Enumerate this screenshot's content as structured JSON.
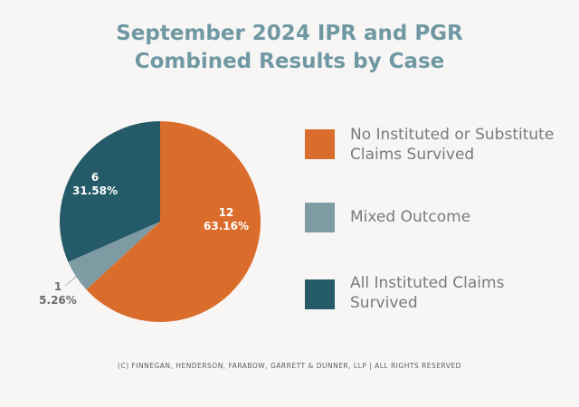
{
  "chart_data": {
    "type": "pie",
    "title_line1": "September 2024 IPR and PGR",
    "title_line2": "Combined Results by Case",
    "slices": [
      {
        "label": "No Instituted or Substitute Claims Survived",
        "count": "12",
        "percent": "63.16%",
        "value": 12,
        "color": "#db6d2c"
      },
      {
        "label": "Mixed Outcome",
        "count": "1",
        "percent": "5.26%",
        "value": 1,
        "color": "#7e9ba3"
      },
      {
        "label": "All Instituted Claims Survived",
        "count": "6",
        "percent": "31.58%",
        "value": 6,
        "color": "#255a69"
      }
    ],
    "legend_position": "right"
  },
  "footer": {
    "text": "(C) FINNEGAN, HENDERSON, FARABOW, GARRETT & DUNNER, LLP | ALL RIGHTS RESERVED"
  }
}
